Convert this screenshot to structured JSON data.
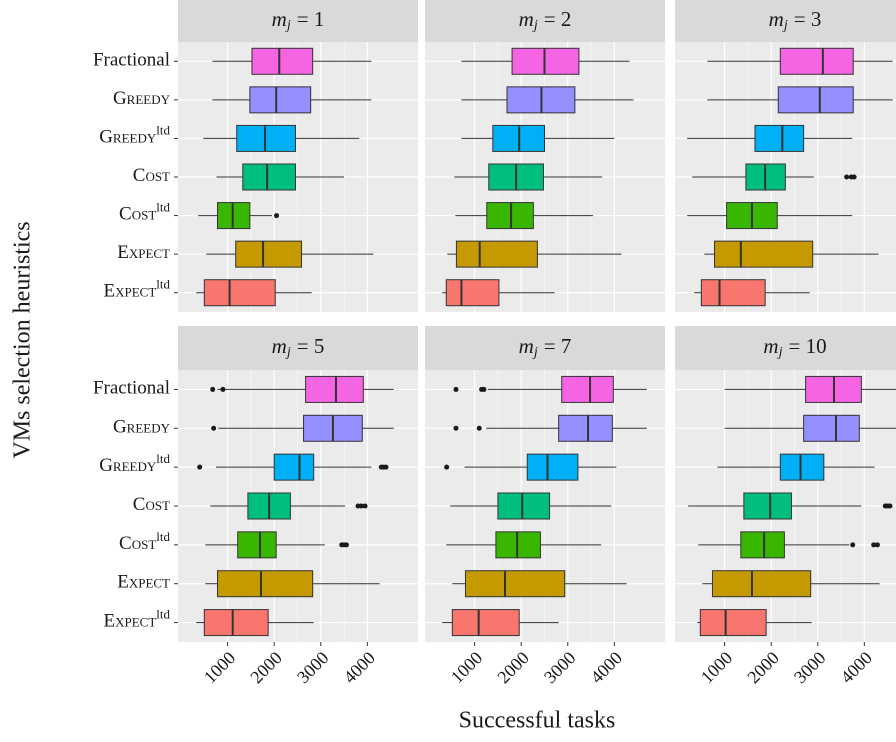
{
  "chart_data": {
    "type": "box",
    "xlabel": "Successful tasks",
    "ylabel": "VMs selection heuristics",
    "categories": [
      "Fractional",
      "Greedy",
      "Greedy",
      "Cost",
      "Cost",
      "Expect",
      "Expect"
    ],
    "superscripts": [
      null,
      null,
      "ltd",
      null,
      "ltd",
      null,
      "ltd"
    ],
    "colors": [
      "#F564E3",
      "#9590FF",
      "#00B0F6",
      "#00BF7D",
      "#39B600",
      "#C49A00",
      "#F8766D"
    ],
    "xlim": [
      -65,
      5087
    ],
    "xticks": [
      1000,
      2000,
      3000,
      4000
    ],
    "grid": true,
    "facets": [
      {
        "title": [
          "m",
          "j",
          "= 1"
        ],
        "boxes": [
          {
            "low": 674,
            "q1": 1522,
            "median": 2109,
            "q3": 2826,
            "high": 4087,
            "outliers": []
          },
          {
            "low": 674,
            "q1": 1478,
            "median": 2043,
            "q3": 2783,
            "high": 4087,
            "outliers": []
          },
          {
            "low": 478,
            "q1": 1196,
            "median": 1804,
            "q3": 2457,
            "high": 3826,
            "outliers": []
          },
          {
            "low": 761,
            "q1": 1326,
            "median": 1848,
            "q3": 2457,
            "high": 3500,
            "outliers": []
          },
          {
            "low": 370,
            "q1": 783,
            "median": 1109,
            "q3": 1478,
            "high": 1950,
            "outliers": [
              2050
            ]
          },
          {
            "low": 543,
            "q1": 1174,
            "median": 1761,
            "q3": 2587,
            "high": 4130,
            "outliers": []
          },
          {
            "low": 326,
            "q1": 500,
            "median": 1043,
            "q3": 2022,
            "high": 2804,
            "outliers": []
          }
        ]
      },
      {
        "title": [
          "m",
          "j",
          "= 2"
        ],
        "boxes": [
          {
            "low": 717,
            "q1": 1804,
            "median": 2500,
            "q3": 3239,
            "high": 4326,
            "outliers": []
          },
          {
            "low": 717,
            "q1": 1696,
            "median": 2435,
            "q3": 3152,
            "high": 4413,
            "outliers": []
          },
          {
            "low": 717,
            "q1": 1391,
            "median": 1957,
            "q3": 2500,
            "high": 4000,
            "outliers": []
          },
          {
            "low": 565,
            "q1": 1304,
            "median": 1891,
            "q3": 2478,
            "high": 3739,
            "outliers": []
          },
          {
            "low": 587,
            "q1": 1261,
            "median": 1783,
            "q3": 2261,
            "high": 3543,
            "outliers": []
          },
          {
            "low": 413,
            "q1": 609,
            "median": 1109,
            "q3": 2348,
            "high": 4152,
            "outliers": []
          },
          {
            "low": 304,
            "q1": 391,
            "median": 717,
            "q3": 1522,
            "high": 2717,
            "outliers": []
          }
        ]
      },
      {
        "title": [
          "m",
          "j",
          "= 3"
        ],
        "boxes": [
          {
            "low": 630,
            "q1": 2196,
            "median": 3109,
            "q3": 3761,
            "high": 4609,
            "outliers": []
          },
          {
            "low": 630,
            "q1": 2152,
            "median": 3043,
            "q3": 3761,
            "high": 4609,
            "outliers": []
          },
          {
            "low": 196,
            "q1": 1652,
            "median": 2239,
            "q3": 2696,
            "high": 3739,
            "outliers": []
          },
          {
            "low": 304,
            "q1": 1457,
            "median": 1870,
            "q3": 2304,
            "high": 2913,
            "outliers": [
              3620,
              3720,
              3780
            ]
          },
          {
            "low": 196,
            "q1": 1043,
            "median": 1587,
            "q3": 2130,
            "high": 3739,
            "outliers": []
          },
          {
            "low": 565,
            "q1": 783,
            "median": 1348,
            "q3": 2891,
            "high": 4304,
            "outliers": []
          },
          {
            "low": 348,
            "q1": 500,
            "median": 891,
            "q3": 1870,
            "high": 2826,
            "outliers": []
          }
        ]
      },
      {
        "title": [
          "m",
          "j",
          "= 5"
        ],
        "boxes": [
          {
            "low": 783,
            "q1": 2674,
            "median": 3326,
            "q3": 3913,
            "high": 4565,
            "outliers": [
              680,
              900
            ]
          },
          {
            "low": 800,
            "q1": 2630,
            "median": 3261,
            "q3": 3891,
            "high": 4565,
            "outliers": [
              700
            ]
          },
          {
            "low": 750,
            "q1": 2000,
            "median": 2543,
            "q3": 2848,
            "high": 4087,
            "outliers": [
              400,
              4300,
              4350,
              4400
            ]
          },
          {
            "low": 630,
            "q1": 1435,
            "median": 1891,
            "q3": 2348,
            "high": 3522,
            "outliers": [
              3800,
              3870,
              3950
            ]
          },
          {
            "low": 522,
            "q1": 1217,
            "median": 1696,
            "q3": 2043,
            "high": 3087,
            "outliers": [
              3450,
              3500,
              3550
            ]
          },
          {
            "low": 522,
            "q1": 783,
            "median": 1717,
            "q3": 2826,
            "high": 4261,
            "outliers": []
          },
          {
            "low": 326,
            "q1": 500,
            "median": 1109,
            "q3": 1870,
            "high": 2848,
            "outliers": []
          }
        ]
      },
      {
        "title": [
          "m",
          "j",
          "= 7"
        ],
        "boxes": [
          {
            "low": 1283,
            "q1": 2870,
            "median": 3478,
            "q3": 3978,
            "high": 4696,
            "outliers": [
              600,
              1150,
              1200
            ]
          },
          {
            "low": 1250,
            "q1": 2804,
            "median": 3435,
            "q3": 3957,
            "high": 4696,
            "outliers": [
              600,
              1100
            ]
          },
          {
            "low": 783,
            "q1": 2130,
            "median": 2565,
            "q3": 3217,
            "high": 4043,
            "outliers": [
              400
            ]
          },
          {
            "low": 478,
            "q1": 1500,
            "median": 2022,
            "q3": 2609,
            "high": 3935,
            "outliers": []
          },
          {
            "low": 391,
            "q1": 1457,
            "median": 1913,
            "q3": 2413,
            "high": 3717,
            "outliers": []
          },
          {
            "low": 520,
            "q1": 804,
            "median": 1652,
            "q3": 2935,
            "high": 4261,
            "outliers": []
          },
          {
            "low": 304,
            "q1": 522,
            "median": 1087,
            "q3": 1957,
            "high": 2804,
            "outliers": []
          }
        ]
      },
      {
        "title": [
          "m",
          "j",
          "= 10"
        ],
        "boxes": [
          {
            "low": 1000,
            "q1": 2739,
            "median": 3348,
            "q3": 3935,
            "high": 4761,
            "outliers": []
          },
          {
            "low": 1000,
            "q1": 2696,
            "median": 3391,
            "q3": 3891,
            "high": 4761,
            "outliers": []
          },
          {
            "low": 848,
            "q1": 2196,
            "median": 2630,
            "q3": 3130,
            "high": 4217,
            "outliers": []
          },
          {
            "low": 217,
            "q1": 1413,
            "median": 1978,
            "q3": 2435,
            "high": 3935,
            "outliers": [
              4450,
              4500,
              4550
            ]
          },
          {
            "low": 435,
            "q1": 1348,
            "median": 1848,
            "q3": 2283,
            "high": 3674,
            "outliers": [
              3750,
              4200,
              4280
            ]
          },
          {
            "low": 522,
            "q1": 739,
            "median": 1587,
            "q3": 2848,
            "high": 4326,
            "outliers": []
          },
          {
            "low": 413,
            "q1": 478,
            "median": 1022,
            "q3": 1891,
            "high": 2870,
            "outliers": []
          }
        ]
      }
    ]
  }
}
